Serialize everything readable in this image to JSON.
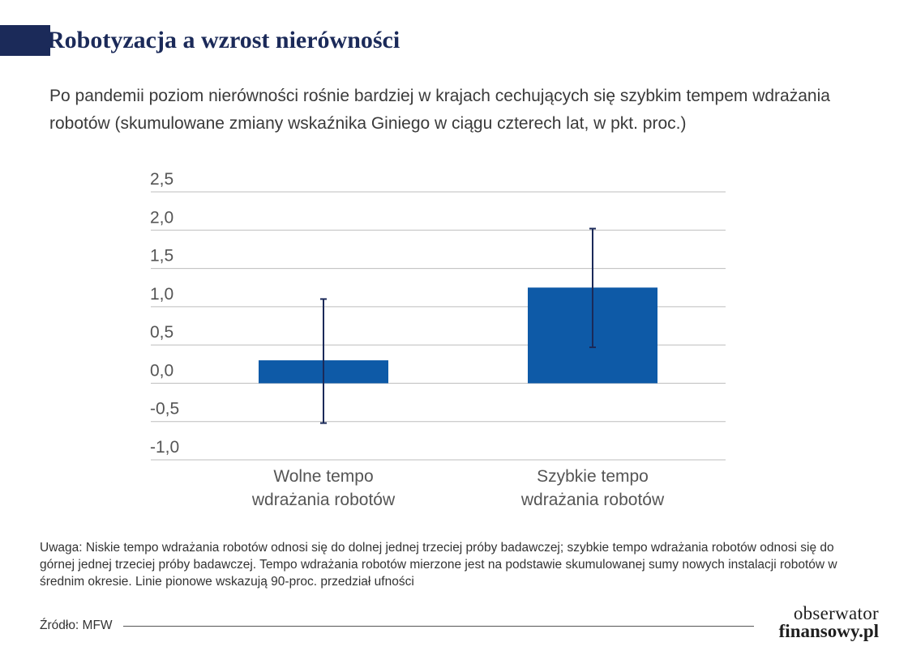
{
  "header": {
    "title": "Robotyzacja a wzrost nierówności",
    "subtitle": "Po pandemii poziom nierówności rośnie bardziej w krajach cechujących się szybkim tempem wdrażania robotów (skumulowane zmiany wskaźnika Giniego w ciągu czterech lat, w pkt. proc.)"
  },
  "chart_data": {
    "type": "bar",
    "categories": [
      "Wolne tempo wdrażania robotów",
      "Szybkie tempo wdrażania robotów"
    ],
    "category_lines": [
      [
        "Wolne tempo",
        "wdrażania robotów"
      ],
      [
        "Szybkie tempo",
        "wdrażania robotów"
      ]
    ],
    "values": [
      0.3,
      1.25
    ],
    "error_bars": [
      {
        "low": -0.52,
        "high": 1.1
      },
      {
        "low": 0.47,
        "high": 2.02
      }
    ],
    "ylim": [
      -1.0,
      2.5
    ],
    "yticks": [
      2.5,
      2.0,
      1.5,
      1.0,
      0.5,
      0.0,
      -0.5,
      -1.0
    ],
    "ytick_labels": [
      "2,5",
      "2,0",
      "1,5",
      "1,0",
      "0,5",
      "0,0",
      "-0,5",
      "-1,0"
    ],
    "grid": true,
    "bar_color": "#0e5aa7",
    "error_bar_color": "#1b2a59",
    "grid_color": "#bdbdbd"
  },
  "note": "Uwaga: Niskie tempo wdrażania robotów odnosi się do dolnej jednej trzeciej próby badawczej; szybkie tempo wdrażania robotów odnosi się do górnej jednej trzeciej próby badawczej. Tempo wdrażania robotów mierzone jest na podstawie skumulowanej sumy nowych instalacji robotów w średnim okresie. Linie pionowe wskazują 90-proc. przedział ufności",
  "source": "Źródło: MFW",
  "logo": {
    "line1": "obserwator",
    "line2": "finansowy.pl"
  }
}
